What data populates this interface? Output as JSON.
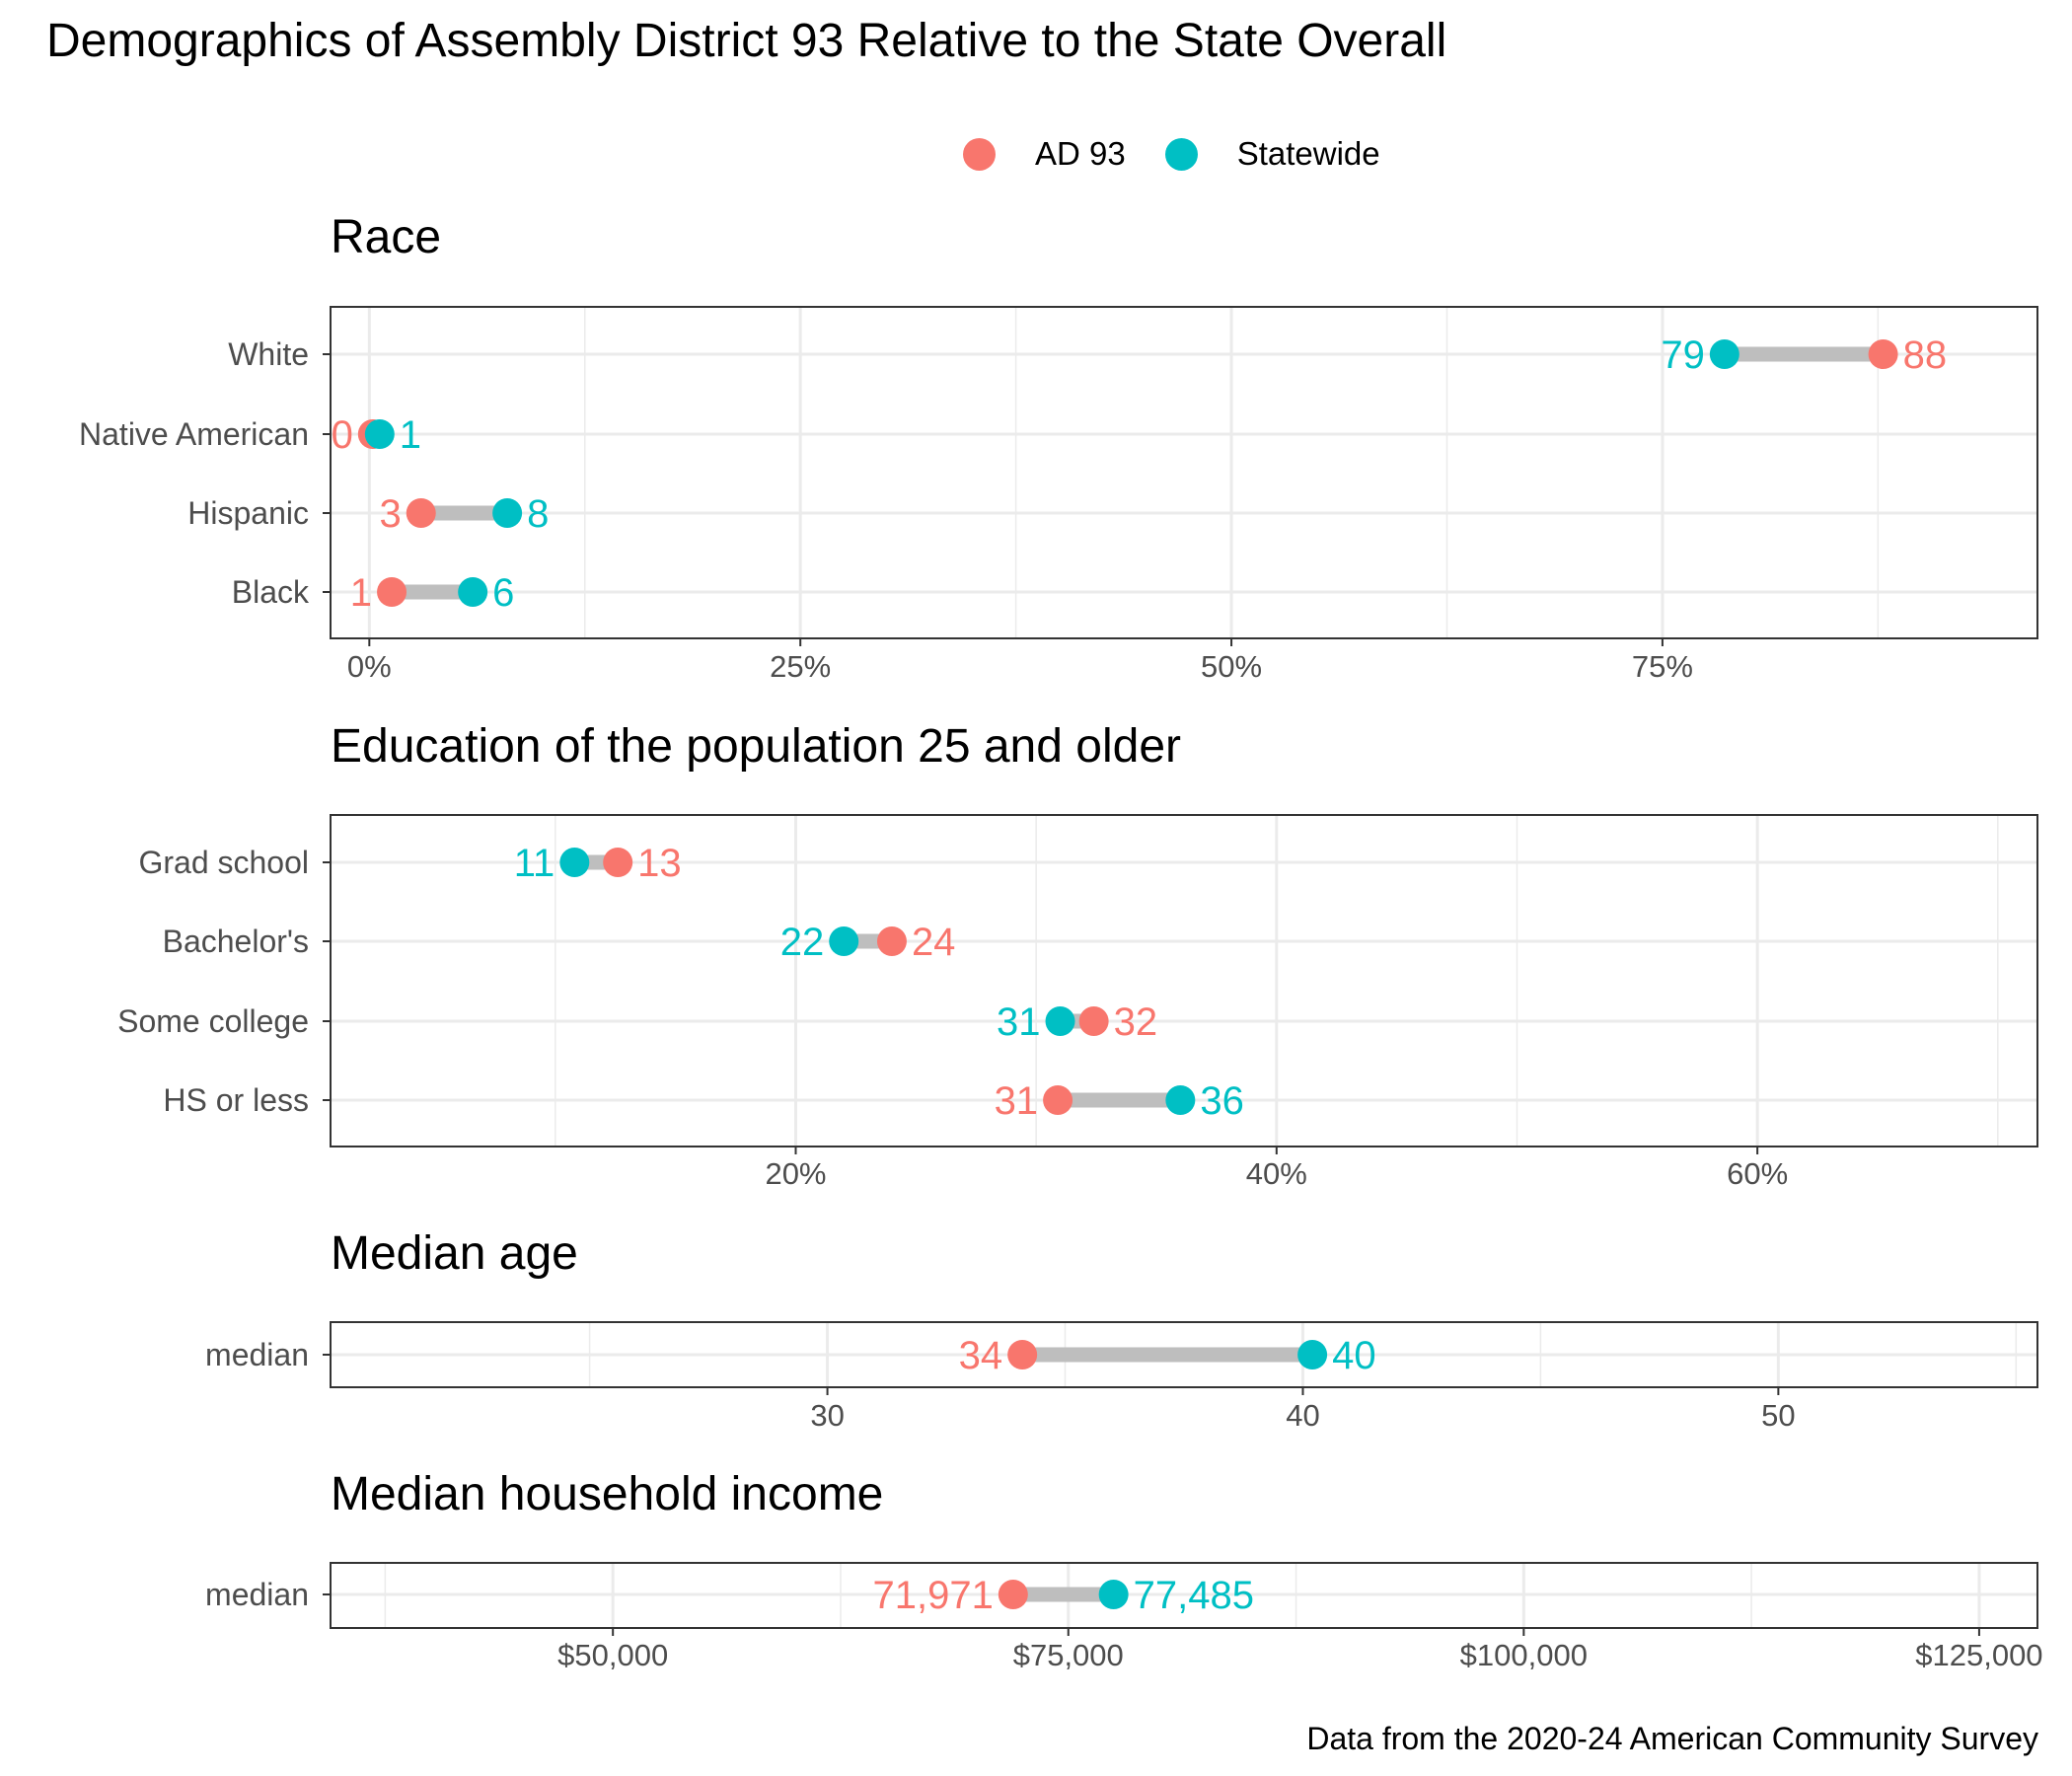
{
  "title": "Demographics of Assembly District 93 Relative to the State Overall",
  "caption": "Data from the 2020-24 American Community Survey",
  "colors": {
    "district": "#F8766D",
    "state": "#00BFC4",
    "segment": "#BEBEBE",
    "grid": "#EBEBEB",
    "panel_border": "#333333",
    "tick_text": "#4D4D4D"
  },
  "legend": {
    "items": [
      {
        "label": "AD 93",
        "color": "#F8766D"
      },
      {
        "label": "Statewide",
        "color": "#00BFC4"
      }
    ],
    "placement": "top"
  },
  "chart_data": [
    {
      "type": "dumbbell",
      "title": "Race",
      "xlim": [
        -0.0225,
        0.9675
      ],
      "x_ticks": [
        0,
        0.25,
        0.5,
        0.75
      ],
      "x_tick_labels": [
        "0%",
        "25%",
        "50%",
        "75%"
      ],
      "x_minor": [
        0.125,
        0.375,
        0.625,
        0.875
      ],
      "categories": [
        "White",
        "Native American",
        "Hispanic",
        "Black"
      ],
      "series": [
        {
          "name": "AD 93",
          "values": [
            0.878,
            0.002,
            0.03,
            0.013
          ],
          "labels": [
            "88",
            "0",
            "3",
            "1"
          ]
        },
        {
          "name": "Statewide",
          "values": [
            0.786,
            0.006,
            0.08,
            0.06
          ],
          "labels": [
            "79",
            "1",
            "8",
            "6"
          ]
        }
      ]
    },
    {
      "type": "dumbbell",
      "title": "Education of the population 25 and older",
      "xlim": [
        0.0065,
        0.7165
      ],
      "x_ticks": [
        0.2,
        0.4,
        0.6
      ],
      "x_tick_labels": [
        "20%",
        "40%",
        "60%"
      ],
      "x_minor": [
        0.1,
        0.3,
        0.5,
        0.7
      ],
      "categories": [
        "Grad school",
        "Bachelor's",
        "Some college",
        "HS or less"
      ],
      "series": [
        {
          "name": "AD 93",
          "values": [
            0.126,
            0.24,
            0.324,
            0.309
          ],
          "labels": [
            "13",
            "24",
            "32",
            "31"
          ]
        },
        {
          "name": "Statewide",
          "values": [
            0.108,
            0.22,
            0.31,
            0.36
          ],
          "labels": [
            "11",
            "22",
            "31",
            "36"
          ]
        }
      ]
    },
    {
      "type": "dumbbell",
      "title": "Median age",
      "xlim": [
        19.55,
        55.45
      ],
      "x_ticks": [
        30,
        40,
        50
      ],
      "x_tick_labels": [
        "30",
        "40",
        "50"
      ],
      "x_minor": [
        25,
        35,
        45,
        55
      ],
      "categories": [
        "median"
      ],
      "series": [
        {
          "name": "AD 93",
          "values": [
            34.1
          ],
          "labels": [
            "34"
          ]
        },
        {
          "name": "Statewide",
          "values": [
            40.2
          ],
          "labels": [
            "40"
          ]
        }
      ]
    },
    {
      "type": "dumbbell",
      "title": "Median household income",
      "xlim": [
        34500,
        128200
      ],
      "x_ticks": [
        50000,
        75000,
        100000,
        125000
      ],
      "x_tick_labels": [
        "$50,000",
        "$75,000",
        "$100,000",
        "$125,000"
      ],
      "x_minor": [
        37500,
        62500,
        87500,
        112500
      ],
      "categories": [
        "median"
      ],
      "series": [
        {
          "name": "AD 93",
          "values": [
            71971
          ],
          "labels": [
            "71,971"
          ]
        },
        {
          "name": "Statewide",
          "values": [
            77485
          ],
          "labels": [
            "77,485"
          ]
        }
      ]
    }
  ]
}
